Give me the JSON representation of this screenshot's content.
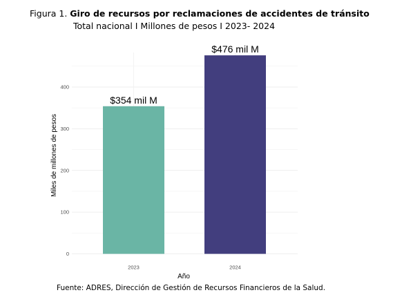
{
  "figure": {
    "prefix": "Figura 1.",
    "title": "Giro de recursos por reclamaciones de accidentes de tránsito",
    "subtitle": "Total nacional  I  Millones de pesos  I  2023- 2024",
    "source": "Fuente: ADRES, Dirección de Gestión de Recursos Financieros de la Salud."
  },
  "chart_data": {
    "type": "bar",
    "categories": [
      "2023",
      "2024"
    ],
    "values": [
      354,
      476
    ],
    "data_labels": [
      "$354 mil M",
      "$476 mil M"
    ],
    "colors": [
      "#6ab5a5",
      "#423e7e"
    ],
    "xlabel": "Año",
    "ylabel": "Miles de millones de pesos",
    "ylim": [
      0,
      500
    ],
    "yticks": [
      0,
      100,
      200,
      300,
      400
    ],
    "grid": true,
    "legend": "none"
  }
}
